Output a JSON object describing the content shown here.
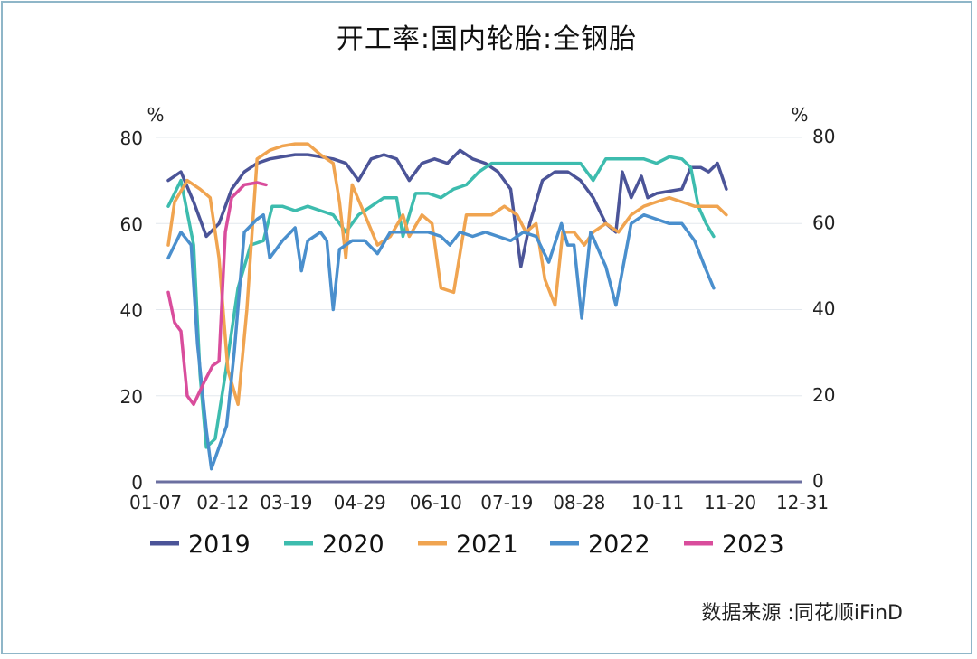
{
  "title": "开工率:国内轮胎:全钢胎",
  "source": "数据来源 :同花顺iFinD",
  "chart_data": {
    "type": "line",
    "title": "开工率:国内轮胎:全钢胎",
    "y_unit_left": "%",
    "y_unit_right": "%",
    "ylim": [
      0,
      80
    ],
    "yticks": [
      0,
      20,
      40,
      60,
      80
    ],
    "xlim": [
      0,
      51
    ],
    "x_ticks": [
      {
        "label": "01-07",
        "x": 0
      },
      {
        "label": "02-12",
        "x": 5.3
      },
      {
        "label": "03-19",
        "x": 10.3
      },
      {
        "label": "04-29",
        "x": 16.1
      },
      {
        "label": "06-10",
        "x": 22.1
      },
      {
        "label": "07-19",
        "x": 27.7
      },
      {
        "label": "08-28",
        "x": 33.4
      },
      {
        "label": "10-11",
        "x": 39.6
      },
      {
        "label": "11-20",
        "x": 45.3
      },
      {
        "label": "12-31",
        "x": 51
      }
    ],
    "legend_position": "bottom",
    "grid": true,
    "series": [
      {
        "name": "2019",
        "color": "#4b5498",
        "points": [
          [
            1,
            70
          ],
          [
            2,
            72
          ],
          [
            3,
            65
          ],
          [
            4,
            57
          ],
          [
            5,
            60
          ],
          [
            6,
            68
          ],
          [
            7,
            72
          ],
          [
            8,
            74
          ],
          [
            9,
            75
          ],
          [
            10,
            75.5
          ],
          [
            11,
            76
          ],
          [
            12,
            76
          ],
          [
            13,
            75.5
          ],
          [
            14,
            75
          ],
          [
            15,
            74
          ],
          [
            16,
            70
          ],
          [
            17,
            75
          ],
          [
            18,
            76
          ],
          [
            19,
            75
          ],
          [
            20,
            70
          ],
          [
            21,
            74
          ],
          [
            22,
            75
          ],
          [
            23,
            74
          ],
          [
            24,
            77
          ],
          [
            25,
            75
          ],
          [
            26,
            74
          ],
          [
            27,
            72
          ],
          [
            28,
            68
          ],
          [
            28.8,
            50
          ],
          [
            29.5,
            60
          ],
          [
            30.5,
            70
          ],
          [
            31.5,
            72
          ],
          [
            32.5,
            72
          ],
          [
            33.5,
            70
          ],
          [
            34.5,
            66
          ],
          [
            35.5,
            60
          ],
          [
            36.3,
            58
          ],
          [
            36.8,
            72
          ],
          [
            37.5,
            66
          ],
          [
            38.3,
            71
          ],
          [
            38.8,
            66
          ],
          [
            39.5,
            67
          ],
          [
            40.5,
            67.5
          ],
          [
            41.5,
            68
          ],
          [
            42.2,
            73
          ],
          [
            43,
            73
          ],
          [
            43.6,
            72
          ],
          [
            44.3,
            74
          ],
          [
            45,
            68
          ]
        ]
      },
      {
        "name": "2020",
        "color": "#3dbcae",
        "points": [
          [
            1,
            64
          ],
          [
            2,
            70
          ],
          [
            3,
            55
          ],
          [
            3.5,
            25
          ],
          [
            4,
            8
          ],
          [
            4.7,
            10
          ],
          [
            5.5,
            25
          ],
          [
            6.5,
            45
          ],
          [
            7.5,
            55
          ],
          [
            8.5,
            56
          ],
          [
            9.2,
            64
          ],
          [
            10,
            64
          ],
          [
            11,
            63
          ],
          [
            12,
            64
          ],
          [
            13,
            63
          ],
          [
            14,
            62
          ],
          [
            15,
            58
          ],
          [
            16,
            62
          ],
          [
            17,
            64
          ],
          [
            18,
            66
          ],
          [
            19,
            66
          ],
          [
            19.5,
            57
          ],
          [
            20.5,
            67
          ],
          [
            21.5,
            67
          ],
          [
            22.5,
            66
          ],
          [
            23.5,
            68
          ],
          [
            24.5,
            69
          ],
          [
            25.5,
            72
          ],
          [
            26.5,
            74
          ],
          [
            27.5,
            74
          ],
          [
            28.5,
            74
          ],
          [
            29.5,
            74
          ],
          [
            30.5,
            74
          ],
          [
            31.5,
            74
          ],
          [
            32.5,
            74
          ],
          [
            33.5,
            74
          ],
          [
            34.5,
            70
          ],
          [
            35.5,
            75
          ],
          [
            36.5,
            75
          ],
          [
            37.5,
            75
          ],
          [
            38.5,
            75
          ],
          [
            39.5,
            74
          ],
          [
            40.5,
            75.5
          ],
          [
            41.5,
            75
          ],
          [
            42.2,
            73
          ],
          [
            42.8,
            64
          ],
          [
            43.4,
            60
          ],
          [
            44,
            57
          ]
        ]
      },
      {
        "name": "2021",
        "color": "#f0a450",
        "points": [
          [
            1,
            55
          ],
          [
            1.5,
            65
          ],
          [
            2.5,
            70
          ],
          [
            3.5,
            68
          ],
          [
            4.3,
            66
          ],
          [
            5,
            52
          ],
          [
            5.7,
            26
          ],
          [
            6.5,
            18
          ],
          [
            7.2,
            40
          ],
          [
            8,
            75
          ],
          [
            9,
            77
          ],
          [
            10,
            78
          ],
          [
            11,
            78.5
          ],
          [
            12,
            78.5
          ],
          [
            13,
            76
          ],
          [
            14,
            74
          ],
          [
            14.5,
            65
          ],
          [
            15,
            52
          ],
          [
            15.5,
            69
          ],
          [
            16.5,
            62
          ],
          [
            17.5,
            55
          ],
          [
            18.5,
            57
          ],
          [
            19.5,
            62
          ],
          [
            20,
            57
          ],
          [
            21,
            62
          ],
          [
            21.8,
            60
          ],
          [
            22.5,
            45
          ],
          [
            23.5,
            44
          ],
          [
            24.5,
            62
          ],
          [
            25.5,
            62
          ],
          [
            26.5,
            62
          ],
          [
            27.5,
            64
          ],
          [
            28.5,
            62
          ],
          [
            29.2,
            58
          ],
          [
            30,
            60
          ],
          [
            30.7,
            47
          ],
          [
            31.5,
            41
          ],
          [
            32.1,
            58
          ],
          [
            33,
            58
          ],
          [
            33.8,
            55
          ],
          [
            34.5,
            58
          ],
          [
            35.5,
            60
          ],
          [
            36.5,
            58
          ],
          [
            37.5,
            62
          ],
          [
            38.5,
            64
          ],
          [
            39.5,
            65
          ],
          [
            40.5,
            66
          ],
          [
            41.5,
            65
          ],
          [
            42.5,
            64
          ],
          [
            43.5,
            64
          ],
          [
            44.3,
            64
          ],
          [
            45,
            62
          ]
        ]
      },
      {
        "name": "2022",
        "color": "#4a8fcd",
        "points": [
          [
            1,
            52
          ],
          [
            2,
            58
          ],
          [
            2.8,
            55
          ],
          [
            3.3,
            32
          ],
          [
            4,
            12
          ],
          [
            4.4,
            3
          ],
          [
            5,
            8
          ],
          [
            5.6,
            13
          ],
          [
            6.2,
            30
          ],
          [
            7,
            58
          ],
          [
            8,
            61
          ],
          [
            8.5,
            62
          ],
          [
            9,
            52
          ],
          [
            10,
            56
          ],
          [
            11,
            59
          ],
          [
            11.5,
            49
          ],
          [
            12,
            56
          ],
          [
            13,
            58
          ],
          [
            13.5,
            56
          ],
          [
            14,
            40
          ],
          [
            14.5,
            54
          ],
          [
            15.5,
            56
          ],
          [
            16.5,
            56
          ],
          [
            17.5,
            53
          ],
          [
            18.5,
            58
          ],
          [
            19.5,
            58
          ],
          [
            20.5,
            58
          ],
          [
            21.5,
            58
          ],
          [
            22.5,
            57
          ],
          [
            23.2,
            55
          ],
          [
            24,
            58
          ],
          [
            25,
            57
          ],
          [
            26,
            58
          ],
          [
            27,
            57
          ],
          [
            28,
            56
          ],
          [
            29,
            58
          ],
          [
            30,
            57
          ],
          [
            31,
            51
          ],
          [
            32,
            60
          ],
          [
            32.5,
            55
          ],
          [
            33,
            55
          ],
          [
            33.6,
            38
          ],
          [
            34.3,
            58
          ],
          [
            35.5,
            50
          ],
          [
            36.3,
            41
          ],
          [
            37.5,
            60
          ],
          [
            38.5,
            62
          ],
          [
            39.5,
            61
          ],
          [
            40.5,
            60
          ],
          [
            41.5,
            60
          ],
          [
            42.5,
            56
          ],
          [
            43.3,
            50
          ],
          [
            44,
            45
          ]
        ]
      },
      {
        "name": "2023",
        "color": "#d94d9c",
        "points": [
          [
            1,
            44
          ],
          [
            1.5,
            37
          ],
          [
            2,
            35
          ],
          [
            2.5,
            20
          ],
          [
            3,
            18
          ],
          [
            3.8,
            23
          ],
          [
            4.5,
            27
          ],
          [
            5,
            28
          ],
          [
            5.5,
            58
          ],
          [
            6,
            66
          ],
          [
            7,
            69
          ],
          [
            8,
            69.5
          ],
          [
            8.7,
            69
          ]
        ]
      }
    ]
  }
}
